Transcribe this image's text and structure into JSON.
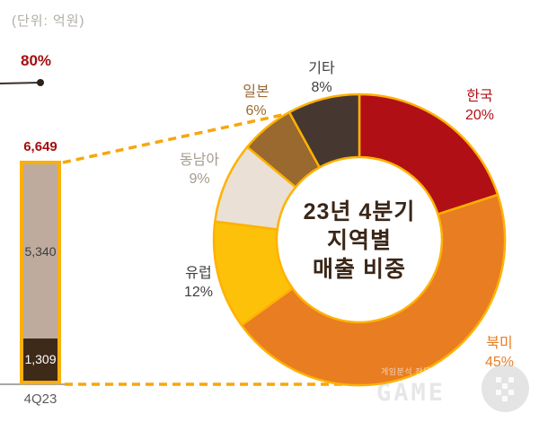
{
  "unit_label": "(단위: 억원)",
  "connector_color": "#f7a70a",
  "chart_data": [
    {
      "type": "pie",
      "donut": true,
      "title": "23년 4분기 지역별 매출 비중",
      "title_lines": [
        "23년 4분기",
        "지역별",
        "매출 비중"
      ],
      "unit": "억원",
      "start_angle_deg": 0,
      "ring_border_color": "#ffb103",
      "legend_position": "around-slices",
      "slices": [
        {
          "id": "korea",
          "label": "한국",
          "pct": 20,
          "pct_label": "20%",
          "color": "#b01015",
          "label_color": "#b11116"
        },
        {
          "id": "north-america",
          "label": "북미",
          "pct": 45,
          "pct_label": "45%",
          "color": "#e87d22",
          "label_color": "#e87e25"
        },
        {
          "id": "europe",
          "label": "유럽",
          "pct": 12,
          "pct_label": "12%",
          "color": "#fec10a",
          "label_color": "#3f3f3f"
        },
        {
          "id": "southeast-asia",
          "label": "동남아",
          "pct": 9,
          "pct_label": "9%",
          "color": "#eae0d5",
          "label_color": "#a59c8d"
        },
        {
          "id": "japan",
          "label": "일본",
          "pct": 6,
          "pct_label": "6%",
          "color": "#9a692f",
          "label_color": "#9c6a33"
        },
        {
          "id": "etc",
          "label": "기타",
          "pct": 8,
          "pct_label": "8%",
          "color": "#463831",
          "label_color": "#3f3f3f"
        }
      ]
    },
    {
      "type": "bar",
      "stacked": true,
      "categories": [
        "4Q23"
      ],
      "unit": "억원",
      "total": 6649,
      "total_label": "6,649",
      "annotation": "80%",
      "border_color": "#fbaf0c",
      "segments": [
        {
          "label": "5,340",
          "value": 5340,
          "color": "#bfab9e",
          "text_color": "#3d3d3d"
        },
        {
          "label": "1,309",
          "value": 1309,
          "color": "#3e2a19",
          "text_color": "#ffffff"
        }
      ]
    }
  ],
  "watermark": {
    "line1": "게임분석 전문 미디어 게임와이",
    "logo_text": "GAME"
  }
}
